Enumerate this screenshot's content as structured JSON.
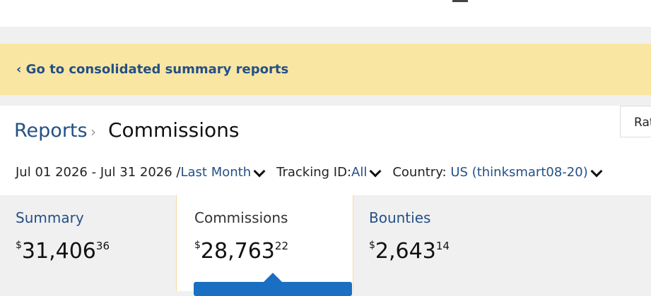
{
  "banner": {
    "link": "‹ Go to consolidated summary reports"
  },
  "breadcrumb": {
    "parent": "Reports",
    "current": "Commissions"
  },
  "right_button": "Rat",
  "filters": {
    "date_range": "Jul 01 2026 - Jul 31 2026 /",
    "period": "Last Month",
    "tracking_label": "Tracking ID:",
    "tracking_value": "All",
    "country_label": "Country:",
    "country_value": "US (thinksmart08-20)"
  },
  "cards": [
    {
      "label": "Summary",
      "currency": "$",
      "whole": "31,406",
      "cents": "36"
    },
    {
      "label": "Commissions",
      "currency": "$",
      "whole": "28,763",
      "cents": "22"
    },
    {
      "label": "Bounties",
      "currency": "$",
      "whole": "2,643",
      "cents": "14"
    }
  ]
}
